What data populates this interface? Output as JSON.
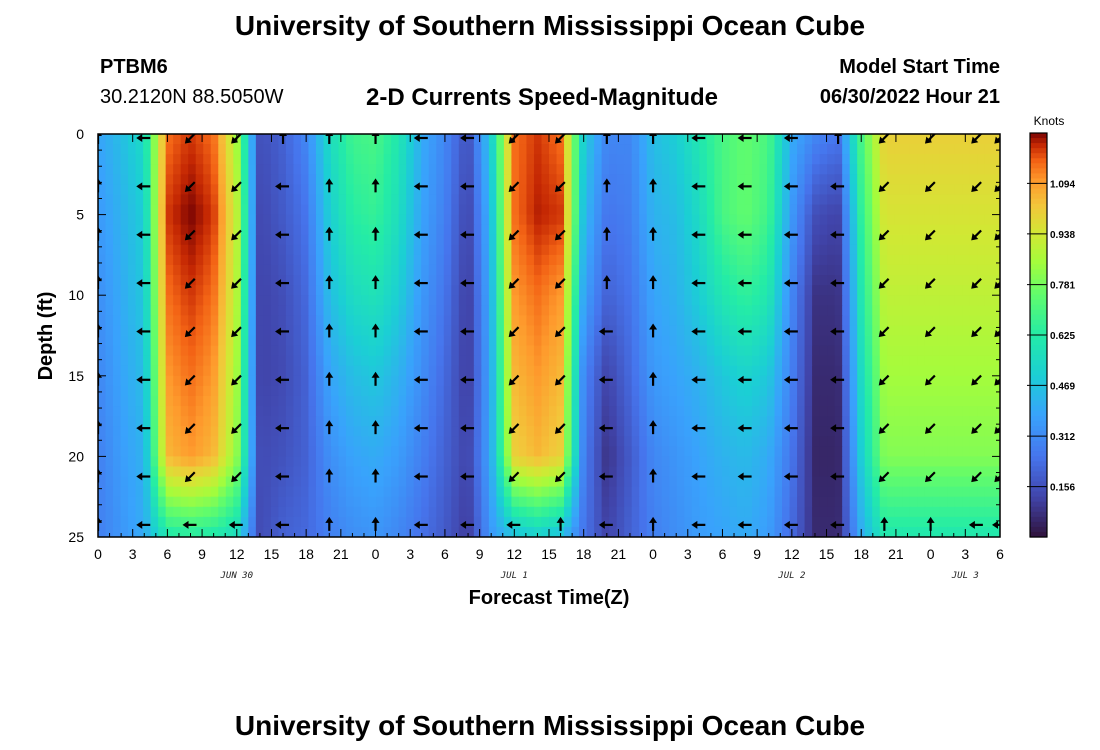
{
  "header": {
    "title": "University of Southern Mississippi Ocean Cube",
    "station": "PTBM6",
    "coords": "30.2120N  88.5050W",
    "plot_title": "2-D Currents Speed-Magnitude",
    "start_label": "Model Start Time",
    "start_value": "06/30/2022 Hour 21"
  },
  "footer": {
    "title": "University of Southern Mississippi Ocean Cube"
  },
  "chart_data": {
    "type": "heatmap",
    "title": "2-D Currents Speed-Magnitude",
    "xlabel": "Forecast Time(Z)",
    "ylabel": "Depth (ft)",
    "xlim": [
      0,
      78
    ],
    "ylim": [
      0,
      25
    ],
    "y_inverted": true,
    "x_ticks": [
      0,
      3,
      6,
      9,
      12,
      15,
      18,
      21,
      24,
      27,
      30,
      33,
      36,
      39,
      42,
      45,
      48,
      51,
      54,
      57,
      60,
      63,
      66,
      69,
      72,
      75,
      78
    ],
    "x_tick_labels": [
      "0",
      "3",
      "6",
      "9",
      "12",
      "15",
      "18",
      "21",
      "0",
      "3",
      "6",
      "9",
      "12",
      "15",
      "18",
      "21",
      "0",
      "3",
      "6",
      "9",
      "12",
      "15",
      "18",
      "21",
      "0",
      "3",
      "6"
    ],
    "y_ticks": [
      0,
      5,
      10,
      15,
      20,
      25
    ],
    "y_tick_labels": [
      "0",
      "5",
      "10",
      "15",
      "20",
      "25"
    ],
    "date_labels": [
      {
        "label": "JUN 30",
        "hour": 12
      },
      {
        "label": "JUL 1",
        "hour": 36
      },
      {
        "label": "JUL 2",
        "hour": 60
      },
      {
        "label": "JUL 3",
        "hour": 75
      }
    ],
    "colorbar": {
      "unit": "Knots",
      "min": 0,
      "max": 1.25,
      "ticks": [
        0.156,
        0.312,
        0.469,
        0.625,
        0.781,
        0.938,
        1.094
      ],
      "tick_labels": [
        "0.156",
        "0.312",
        "0.469",
        "0.625",
        "0.781",
        "0.938",
        "1.094"
      ]
    },
    "time_hours": [
      0,
      2,
      4,
      6,
      8,
      10,
      12,
      14,
      16,
      18,
      20,
      22,
      24,
      26,
      28,
      30,
      32,
      34,
      36,
      38,
      40,
      42,
      44,
      46,
      48,
      50,
      52,
      54,
      56,
      58,
      60,
      62,
      64,
      66,
      68,
      70,
      72,
      74,
      76,
      78
    ],
    "depth_levels_ft": [
      0,
      5,
      10,
      15,
      20,
      25
    ],
    "speed_knots": [
      [
        0.38,
        0.45,
        0.55,
        1.15,
        1.2,
        1.15,
        0.85,
        0.15,
        0.2,
        0.3,
        0.55,
        0.68,
        0.7,
        0.6,
        0.4,
        0.3,
        0.15,
        0.5,
        1.15,
        1.2,
        1.15,
        0.5,
        0.3,
        0.3,
        0.45,
        0.5,
        0.6,
        0.7,
        0.75,
        0.7,
        0.4,
        0.3,
        0.25,
        0.7,
        1.0,
        1.0,
        1.0,
        1.0,
        1.0,
        1.0
      ],
      [
        0.35,
        0.42,
        0.5,
        1.2,
        1.25,
        1.2,
        0.9,
        0.13,
        0.18,
        0.25,
        0.5,
        0.63,
        0.66,
        0.56,
        0.38,
        0.28,
        0.12,
        0.45,
        1.15,
        1.22,
        1.2,
        0.45,
        0.25,
        0.28,
        0.42,
        0.45,
        0.55,
        0.7,
        0.75,
        0.68,
        0.35,
        0.15,
        0.12,
        0.65,
        0.95,
        0.95,
        0.95,
        0.95,
        0.95,
        0.95
      ],
      [
        0.32,
        0.4,
        0.48,
        1.15,
        1.2,
        1.15,
        0.88,
        0.12,
        0.15,
        0.22,
        0.45,
        0.55,
        0.58,
        0.5,
        0.35,
        0.25,
        0.1,
        0.42,
        1.1,
        1.15,
        1.1,
        0.38,
        0.2,
        0.25,
        0.38,
        0.42,
        0.5,
        0.6,
        0.65,
        0.6,
        0.3,
        0.08,
        0.08,
        0.6,
        0.9,
        0.9,
        0.9,
        0.9,
        0.9,
        0.9
      ],
      [
        0.3,
        0.38,
        0.45,
        1.1,
        1.15,
        1.1,
        0.85,
        0.12,
        0.14,
        0.2,
        0.38,
        0.45,
        0.48,
        0.42,
        0.32,
        0.22,
        0.1,
        0.4,
        1.05,
        1.1,
        1.05,
        0.3,
        0.12,
        0.22,
        0.35,
        0.38,
        0.42,
        0.48,
        0.52,
        0.48,
        0.28,
        0.06,
        0.06,
        0.55,
        0.85,
        0.85,
        0.85,
        0.85,
        0.85,
        0.85
      ],
      [
        0.28,
        0.36,
        0.42,
        1.05,
        1.1,
        1.05,
        0.82,
        0.14,
        0.16,
        0.2,
        0.32,
        0.38,
        0.4,
        0.36,
        0.28,
        0.2,
        0.12,
        0.4,
        1.0,
        1.05,
        1.0,
        0.28,
        0.08,
        0.18,
        0.3,
        0.34,
        0.38,
        0.42,
        0.44,
        0.4,
        0.25,
        0.05,
        0.05,
        0.5,
        0.8,
        0.8,
        0.8,
        0.8,
        0.8,
        0.8
      ],
      [
        0.28,
        0.34,
        0.4,
        0.6,
        0.62,
        0.6,
        0.55,
        0.14,
        0.2,
        0.22,
        0.28,
        0.32,
        0.34,
        0.3,
        0.24,
        0.18,
        0.1,
        0.35,
        0.45,
        0.5,
        0.45,
        0.25,
        0.12,
        0.2,
        0.28,
        0.32,
        0.36,
        0.38,
        0.4,
        0.36,
        0.22,
        0.06,
        0.06,
        0.4,
        0.6,
        0.6,
        0.6,
        0.6,
        0.6,
        0.6
      ]
    ],
    "vectors": {
      "time_hours": [
        0,
        4,
        8,
        12,
        16,
        20,
        24,
        28,
        32,
        36,
        40,
        44,
        48,
        52,
        56,
        60,
        64,
        68,
        72,
        76,
        78
      ],
      "depth_ft": [
        0,
        3,
        6,
        9,
        12,
        15,
        18,
        21,
        24
      ],
      "direction_deg": {
        "ebb": 225,
        "flood": 0,
        "slack": 270
      }
    }
  }
}
